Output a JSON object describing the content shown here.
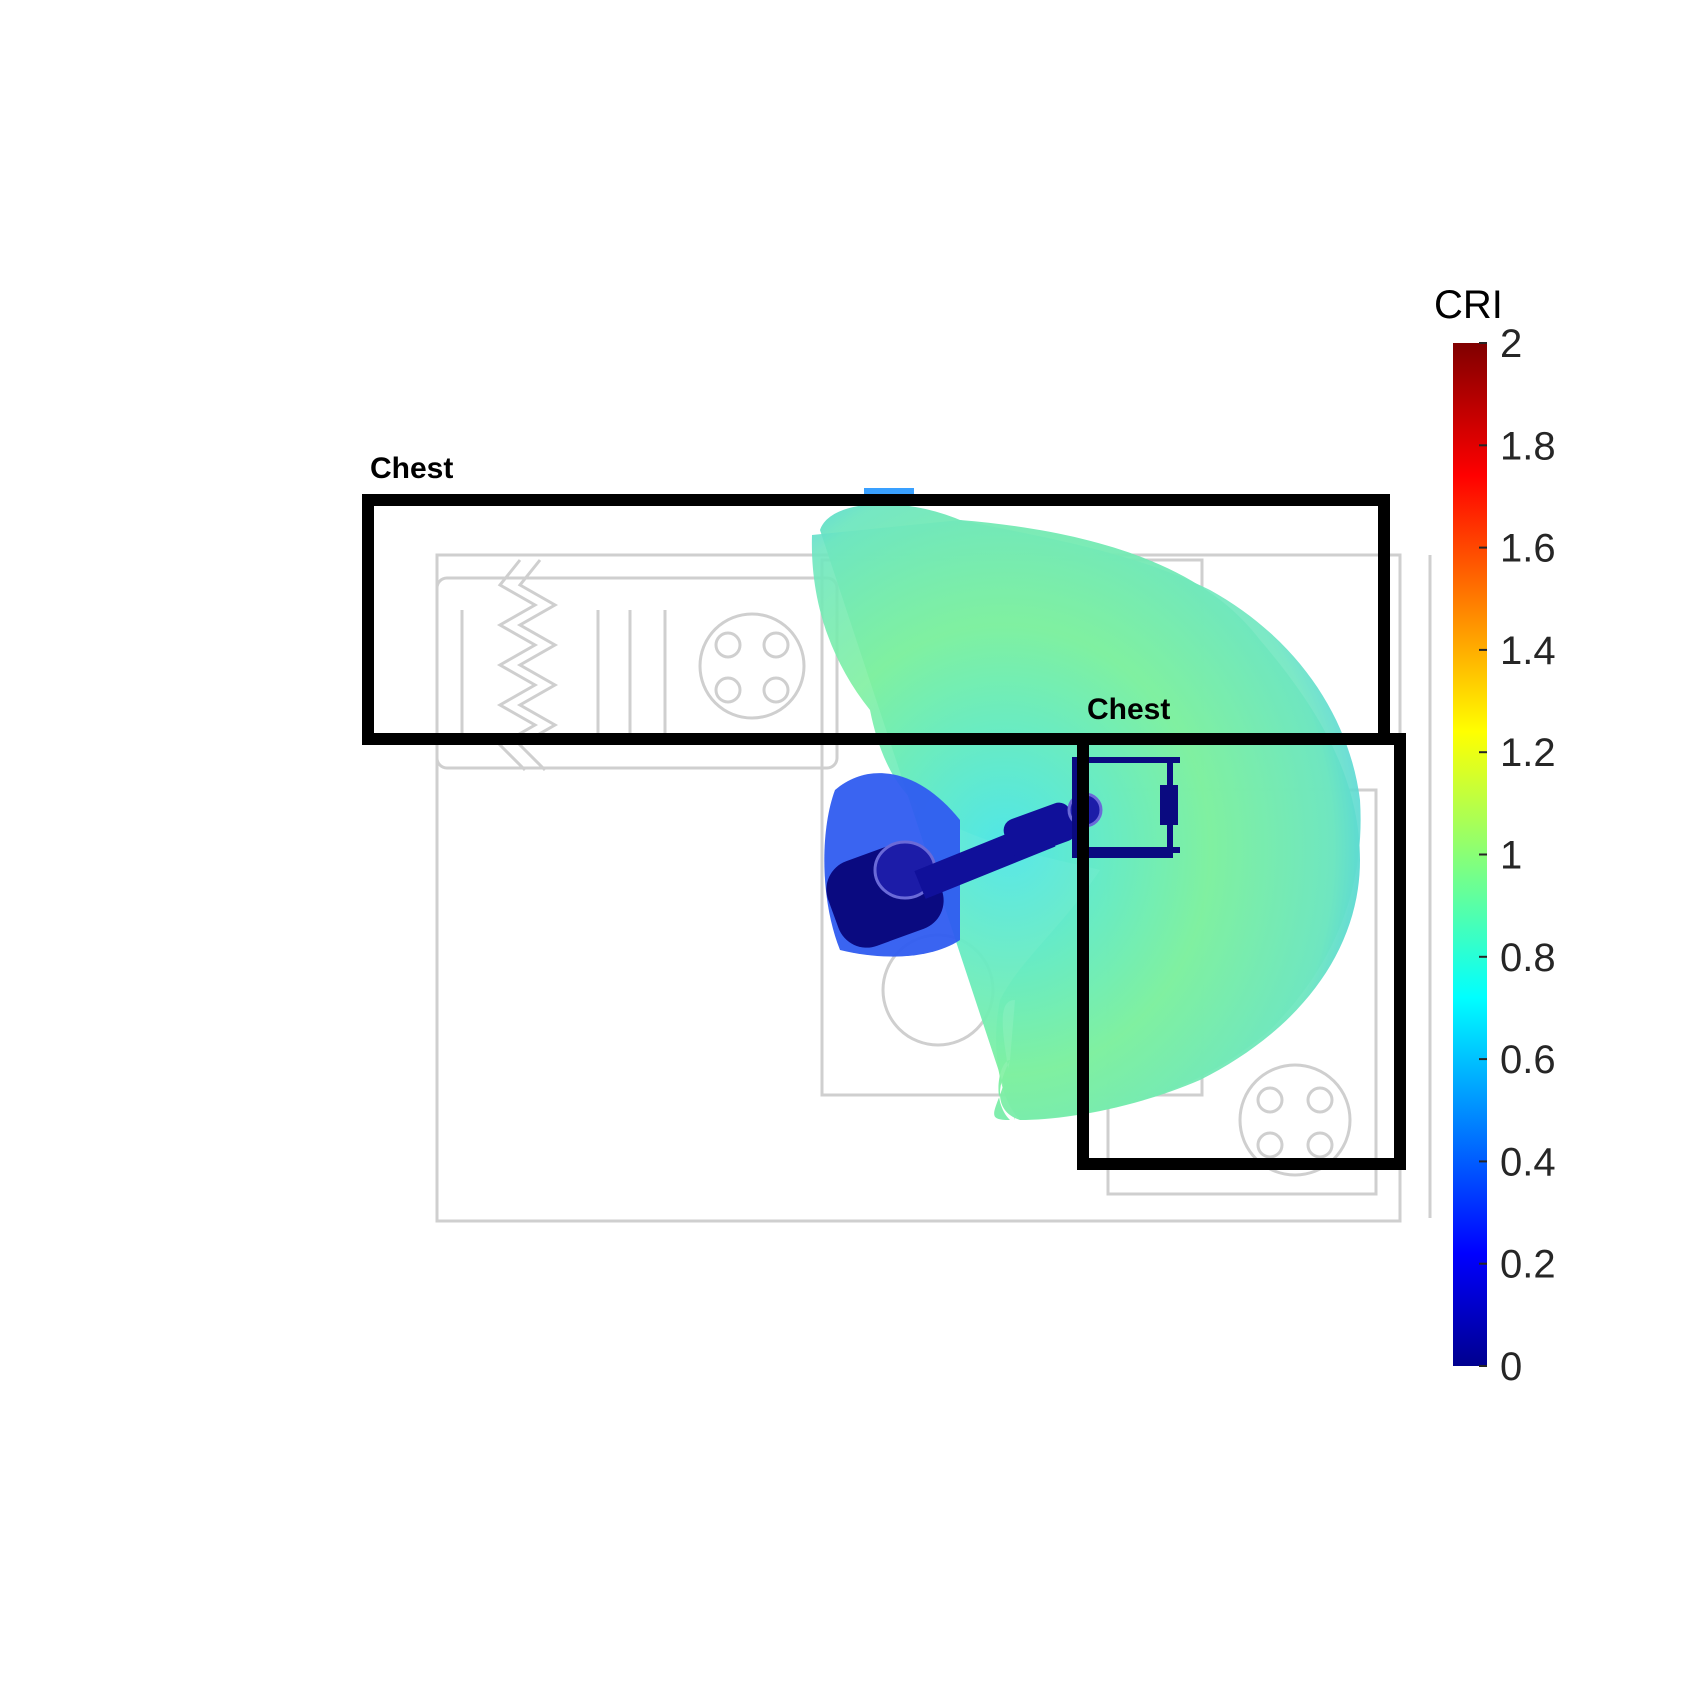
{
  "regions": [
    {
      "label": "Chest"
    },
    {
      "label": "Chest"
    }
  ],
  "colorbar": {
    "title": "CRI",
    "colormap": "jet",
    "range": [
      0,
      2
    ],
    "ticks": [
      {
        "value": 2,
        "label": "2"
      },
      {
        "value": 1.8,
        "label": "1.8"
      },
      {
        "value": 1.6,
        "label": "1.6"
      },
      {
        "value": 1.4,
        "label": "1.4"
      },
      {
        "value": 1.2,
        "label": "1.2"
      },
      {
        "value": 1,
        "label": "1"
      },
      {
        "value": 0.8,
        "label": "0.8"
      },
      {
        "value": 0.6,
        "label": "0.6"
      },
      {
        "value": 0.4,
        "label": "0.4"
      },
      {
        "value": 0.2,
        "label": "0.2"
      },
      {
        "value": 0,
        "label": "0"
      }
    ]
  },
  "colors": {
    "region_box": "#000000",
    "floorplan": "#cfcfcf",
    "heat_low": "#2a9cff",
    "heat_mid": "#3fd8f0",
    "heat_high": "#9af060",
    "robot": "#0a0a80"
  }
}
